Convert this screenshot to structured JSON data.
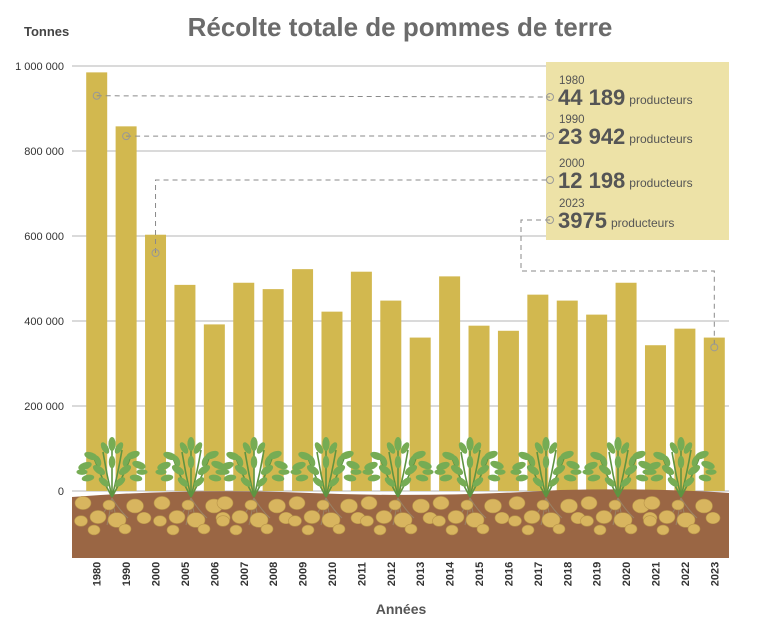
{
  "chart_data": {
    "type": "bar",
    "title": "Récolte totale de pommes de terre",
    "ylabel": "Tonnes",
    "xlabel": "Années",
    "ylim": [
      0,
      1000000
    ],
    "yticks": [
      0,
      200000,
      400000,
      600000,
      800000,
      1000000
    ],
    "ytick_labels": [
      "0",
      "200 000",
      "400 000",
      "600 000",
      "800 000",
      "1 000 000"
    ],
    "categories": [
      "1980",
      "1990",
      "2000",
      "2005",
      "2006",
      "2007",
      "2008",
      "2009",
      "2010",
      "2011",
      "2012",
      "2013",
      "2014",
      "2015",
      "2016",
      "2017",
      "2018",
      "2019",
      "2020",
      "2021",
      "2022",
      "2023"
    ],
    "values": [
      985000,
      858000,
      603000,
      485000,
      392000,
      490000,
      475000,
      522000,
      422000,
      516000,
      448000,
      361000,
      505000,
      389000,
      377000,
      462000,
      448000,
      415000,
      490000,
      343000,
      382000,
      361000
    ],
    "grid": true,
    "annotations": [
      {
        "year": "1980",
        "value": "44 189",
        "unit": "producteurs",
        "category": "1980",
        "y": 930000
      },
      {
        "year": "1990",
        "value": "23 942",
        "unit": "producteurs",
        "category": "1990",
        "y": 835000
      },
      {
        "year": "2000",
        "value": "12 198",
        "unit": "producteurs",
        "category": "2000",
        "y": 560000
      },
      {
        "year": "2023",
        "value": "3975",
        "unit": "producteurs",
        "category": "2023",
        "y": 338000
      }
    ]
  },
  "colors": {
    "bar": "#d2b84f",
    "soil": "#9a6644",
    "potato": "#d8b55f",
    "leaf": "#76ac54",
    "stem": "#5e9441",
    "root": "#9a8366",
    "grid": "#9c9c9c",
    "annotation_box": "#ede2a7",
    "leader": "#8a8a8a"
  }
}
